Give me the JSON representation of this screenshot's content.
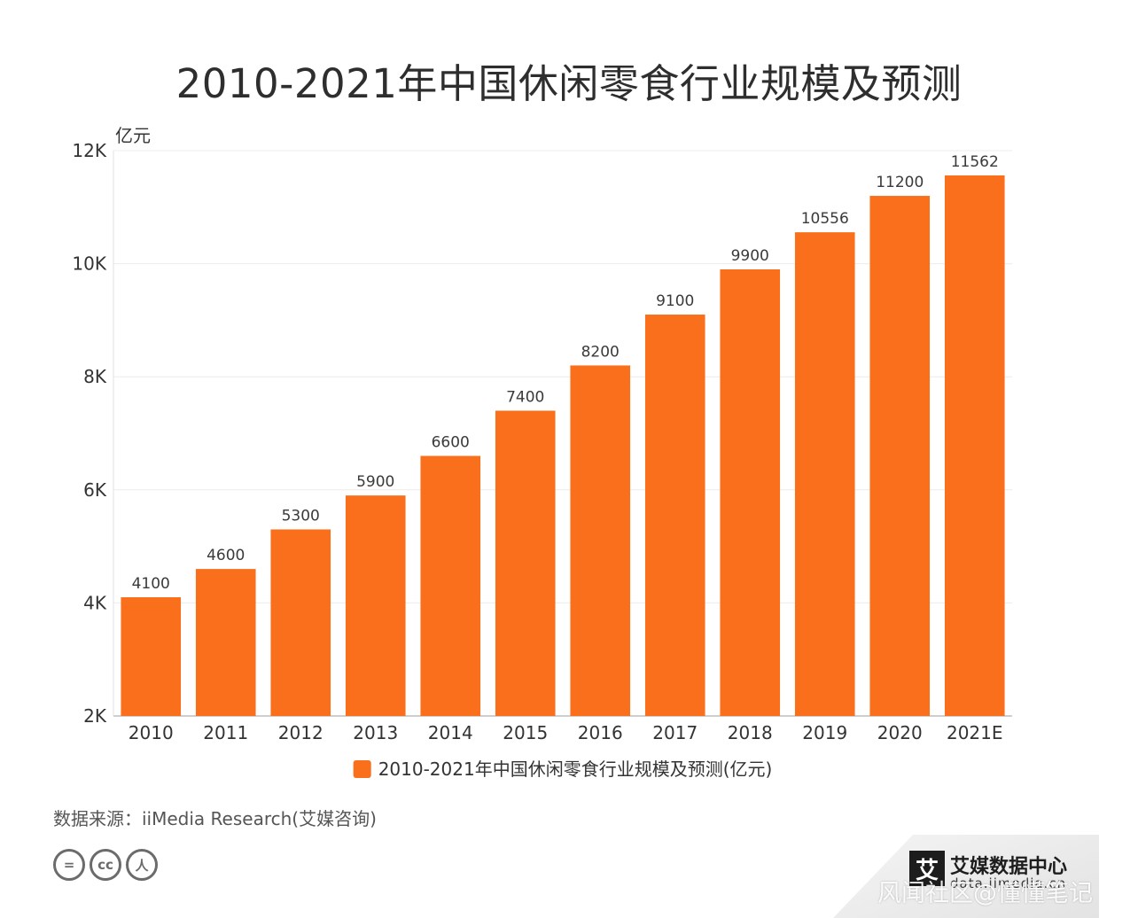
{
  "header": {
    "title": "2010-2021年中国休闲零食行业规模及预测"
  },
  "chart_data": {
    "type": "bar",
    "categories": [
      "2010",
      "2011",
      "2012",
      "2013",
      "2014",
      "2015",
      "2016",
      "2017",
      "2018",
      "2019",
      "2020",
      "2021E"
    ],
    "series": [
      {
        "name": "2010-2021年中国休闲零食行业规模及预测(亿元)",
        "values": [
          4100,
          4600,
          5300,
          5900,
          6600,
          7400,
          8200,
          9100,
          9900,
          10556,
          11200,
          11562
        ]
      }
    ],
    "data_labels": [
      "4100",
      "4600",
      "5300",
      "5900",
      "6600",
      "7400",
      "8200",
      "9100",
      "9900",
      "10556",
      "11200",
      "11562"
    ],
    "title": "2010-2021年中国休闲零食行业规模及预测",
    "xlabel": "",
    "ylabel": "亿元",
    "ylim": [
      2000,
      12000
    ],
    "y_ticks": [
      2000,
      4000,
      6000,
      8000,
      10000,
      12000
    ],
    "y_tick_labels": [
      "2K",
      "4K",
      "6K",
      "8K",
      "10K",
      "12K"
    ],
    "grid": true,
    "legend_position": "bottom-center",
    "bar_color": "#f96f1b"
  },
  "footer": {
    "source": "数据来源：iiMedia Research(艾媒咨询)",
    "license_icons": [
      "equals-icon",
      "cc-icon",
      "person-icon"
    ],
    "license_glyphs": [
      "=",
      "cc",
      "人"
    ],
    "brand_logo_char": "艾",
    "brand_name": "艾媒数据中心",
    "brand_url": "data.iimedia.cn",
    "watermark": "风闻社区@懂懂笔记"
  }
}
